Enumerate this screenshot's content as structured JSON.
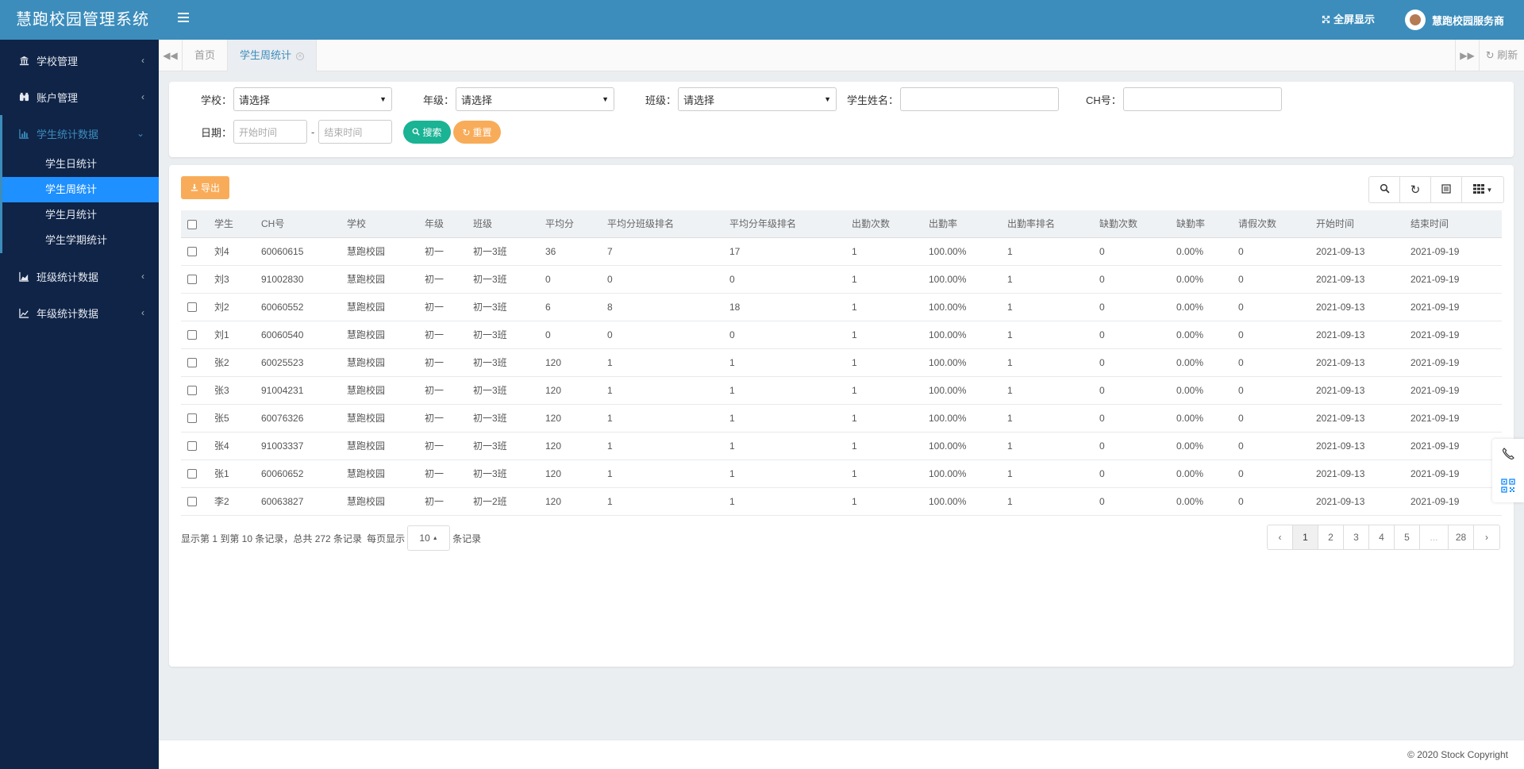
{
  "app": {
    "title": "慧跑校园管理系统"
  },
  "header": {
    "fullscreen_label": "全屏显示",
    "user_name": "慧跑校园服务商"
  },
  "sidebar": {
    "items": [
      {
        "label": "学校管理",
        "icon": "bank-icon"
      },
      {
        "label": "账户管理",
        "icon": "binoculars-icon"
      },
      {
        "label": "学生统计数据",
        "icon": "bar-chart-icon"
      },
      {
        "label": "班级统计数据",
        "icon": "area-chart-icon"
      },
      {
        "label": "年级统计数据",
        "icon": "line-chart-icon"
      }
    ],
    "sub_items": [
      {
        "label": "学生日统计"
      },
      {
        "label": "学生周统计"
      },
      {
        "label": "学生月统计"
      },
      {
        "label": "学生学期统计"
      }
    ]
  },
  "tabs": {
    "home": "首页",
    "current": "学生周统计",
    "refresh": "刷新"
  },
  "search": {
    "school_label": "学校：",
    "school_value": "请选择",
    "grade_label": "年级：",
    "grade_value": "请选择",
    "class_label": "班级：",
    "class_value": "请选择",
    "name_label": "学生姓名：",
    "ch_label": "CH号：",
    "date_label": "日期：",
    "start_placeholder": "开始时间",
    "date_separator": "-",
    "end_placeholder": "结束时间",
    "search_button": "搜索",
    "reset_button": "重置"
  },
  "table": {
    "export_button": "导出",
    "columns": [
      "学生",
      "CH号",
      "学校",
      "年级",
      "班级",
      "平均分",
      "平均分班级排名",
      "平均分年级排名",
      "出勤次数",
      "出勤率",
      "出勤率排名",
      "缺勤次数",
      "缺勤率",
      "请假次数",
      "开始时间",
      "结束时间"
    ],
    "rows": [
      [
        "刘4",
        "60060615",
        "慧跑校园",
        "初一",
        "初一3班",
        "36",
        "7",
        "17",
        "1",
        "100.00%",
        "1",
        "0",
        "0.00%",
        "0",
        "2021-09-13",
        "2021-09-19"
      ],
      [
        "刘3",
        "91002830",
        "慧跑校园",
        "初一",
        "初一3班",
        "0",
        "0",
        "0",
        "1",
        "100.00%",
        "1",
        "0",
        "0.00%",
        "0",
        "2021-09-13",
        "2021-09-19"
      ],
      [
        "刘2",
        "60060552",
        "慧跑校园",
        "初一",
        "初一3班",
        "6",
        "8",
        "18",
        "1",
        "100.00%",
        "1",
        "0",
        "0.00%",
        "0",
        "2021-09-13",
        "2021-09-19"
      ],
      [
        "刘1",
        "60060540",
        "慧跑校园",
        "初一",
        "初一3班",
        "0",
        "0",
        "0",
        "1",
        "100.00%",
        "1",
        "0",
        "0.00%",
        "0",
        "2021-09-13",
        "2021-09-19"
      ],
      [
        "张2",
        "60025523",
        "慧跑校园",
        "初一",
        "初一3班",
        "120",
        "1",
        "1",
        "1",
        "100.00%",
        "1",
        "0",
        "0.00%",
        "0",
        "2021-09-13",
        "2021-09-19"
      ],
      [
        "张3",
        "91004231",
        "慧跑校园",
        "初一",
        "初一3班",
        "120",
        "1",
        "1",
        "1",
        "100.00%",
        "1",
        "0",
        "0.00%",
        "0",
        "2021-09-13",
        "2021-09-19"
      ],
      [
        "张5",
        "60076326",
        "慧跑校园",
        "初一",
        "初一3班",
        "120",
        "1",
        "1",
        "1",
        "100.00%",
        "1",
        "0",
        "0.00%",
        "0",
        "2021-09-13",
        "2021-09-19"
      ],
      [
        "张4",
        "91003337",
        "慧跑校园",
        "初一",
        "初一3班",
        "120",
        "1",
        "1",
        "1",
        "100.00%",
        "1",
        "0",
        "0.00%",
        "0",
        "2021-09-13",
        "2021-09-19"
      ],
      [
        "张1",
        "60060652",
        "慧跑校园",
        "初一",
        "初一3班",
        "120",
        "1",
        "1",
        "1",
        "100.00%",
        "1",
        "0",
        "0.00%",
        "0",
        "2021-09-13",
        "2021-09-19"
      ],
      [
        "李2",
        "60063827",
        "慧跑校园",
        "初一",
        "初一2班",
        "120",
        "1",
        "1",
        "1",
        "100.00%",
        "1",
        "0",
        "0.00%",
        "0",
        "2021-09-13",
        "2021-09-19"
      ]
    ]
  },
  "pagination": {
    "info_text": "显示第 1 到第 10 条记录，总共 272 条记录",
    "per_page_prefix": "每页显示",
    "per_page_value": "10",
    "per_page_suffix": "条记录",
    "prev": "‹",
    "pages": [
      "1",
      "2",
      "3",
      "4",
      "5",
      "...",
      "28"
    ],
    "next": "›",
    "active_page": "1"
  },
  "footer": {
    "copyright": "© 2020 Stock Copyright"
  },
  "colors": {
    "brand_blue": "#3c8dbc",
    "sidebar_bg": "#0f2447",
    "active_blue": "#1e90ff",
    "success": "#1ab394",
    "warning": "#f8ac59"
  }
}
